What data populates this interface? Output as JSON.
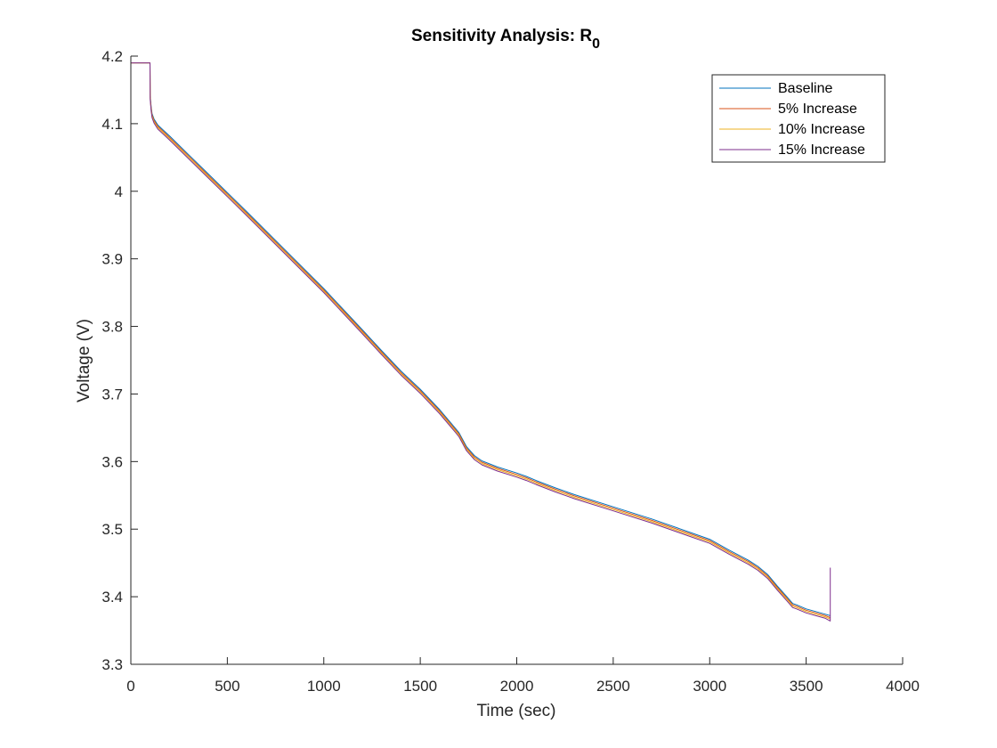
{
  "chart_data": {
    "type": "line",
    "title": "Sensitivity Analysis: R",
    "title_subscript": "0",
    "xlabel": "Time (sec)",
    "ylabel": "Voltage (V)",
    "xlim": [
      0,
      4000
    ],
    "ylim": [
      3.3,
      4.2
    ],
    "xticks": [
      0,
      500,
      1000,
      1500,
      2000,
      2500,
      3000,
      3500,
      4000
    ],
    "xtick_labels": [
      "0",
      "500",
      "1000",
      "1500",
      "2000",
      "2500",
      "3000",
      "3500",
      "4000"
    ],
    "yticks": [
      3.3,
      3.4,
      3.5,
      3.6,
      3.7,
      3.8,
      3.9,
      4.0,
      4.1,
      4.2
    ],
    "ytick_labels": [
      "3.3",
      "3.4",
      "3.5",
      "3.6",
      "3.7",
      "3.8",
      "3.9",
      "4",
      "4.1",
      "4.2"
    ],
    "grid": false,
    "legend_position": "top-right",
    "x": [
      0,
      99,
      100,
      105,
      110,
      120,
      140,
      170,
      200,
      300,
      400,
      500,
      600,
      800,
      1000,
      1200,
      1300,
      1400,
      1500,
      1600,
      1680,
      1700,
      1740,
      1780,
      1820,
      1900,
      2000,
      2050,
      2100,
      2200,
      2300,
      2500,
      2700,
      2900,
      3000,
      3100,
      3200,
      3250,
      3300,
      3350,
      3400,
      3430,
      3450,
      3500,
      3550,
      3600,
      3625
    ],
    "series": [
      {
        "name": "Baseline",
        "color": "#0072BD",
        "values": [
          4.19,
          4.19,
          4.142,
          4.125,
          4.115,
          4.107,
          4.098,
          4.09,
          4.082,
          4.054,
          4.026,
          3.998,
          3.97,
          3.913,
          3.856,
          3.795,
          3.764,
          3.734,
          3.707,
          3.677,
          3.65,
          3.643,
          3.622,
          3.609,
          3.601,
          3.592,
          3.583,
          3.578,
          3.572,
          3.561,
          3.551,
          3.533,
          3.515,
          3.495,
          3.485,
          3.469,
          3.454,
          3.445,
          3.433,
          3.416,
          3.4,
          3.39,
          3.388,
          3.382,
          3.378,
          3.374,
          3.372
        ]
      },
      {
        "name": "5% Increase",
        "color": "#D95319",
        "values": [
          4.19,
          4.19,
          4.14,
          4.123,
          4.113,
          4.105,
          4.096,
          4.088,
          4.08,
          4.052,
          4.024,
          3.996,
          3.968,
          3.911,
          3.854,
          3.793,
          3.762,
          3.732,
          3.705,
          3.675,
          3.648,
          3.641,
          3.62,
          3.607,
          3.599,
          3.59,
          3.581,
          3.576,
          3.57,
          3.559,
          3.549,
          3.531,
          3.513,
          3.493,
          3.483,
          3.467,
          3.452,
          3.443,
          3.431,
          3.414,
          3.398,
          3.388,
          3.386,
          3.38,
          3.376,
          3.372,
          3.369
        ]
      },
      {
        "name": "10% Increase",
        "color": "#EDB120",
        "values": [
          4.19,
          4.19,
          4.138,
          4.121,
          4.111,
          4.103,
          4.094,
          4.086,
          4.078,
          4.05,
          4.022,
          3.994,
          3.966,
          3.909,
          3.852,
          3.791,
          3.76,
          3.73,
          3.703,
          3.673,
          3.646,
          3.639,
          3.618,
          3.605,
          3.597,
          3.588,
          3.579,
          3.574,
          3.568,
          3.557,
          3.547,
          3.529,
          3.511,
          3.491,
          3.481,
          3.465,
          3.45,
          3.441,
          3.429,
          3.412,
          3.396,
          3.386,
          3.384,
          3.378,
          3.374,
          3.37,
          3.367
        ]
      },
      {
        "name": "15% Increase",
        "color": "#7E2F8E",
        "values": [
          4.19,
          4.19,
          4.136,
          4.119,
          4.109,
          4.101,
          4.092,
          4.084,
          4.076,
          4.048,
          4.02,
          3.992,
          3.964,
          3.907,
          3.85,
          3.789,
          3.758,
          3.728,
          3.701,
          3.671,
          3.644,
          3.637,
          3.616,
          3.603,
          3.595,
          3.586,
          3.577,
          3.572,
          3.566,
          3.555,
          3.545,
          3.527,
          3.509,
          3.489,
          3.479,
          3.463,
          3.448,
          3.439,
          3.427,
          3.41,
          3.394,
          3.384,
          3.382,
          3.376,
          3.372,
          3.368,
          3.364
        ],
        "end_jump_value": 3.443
      }
    ]
  }
}
